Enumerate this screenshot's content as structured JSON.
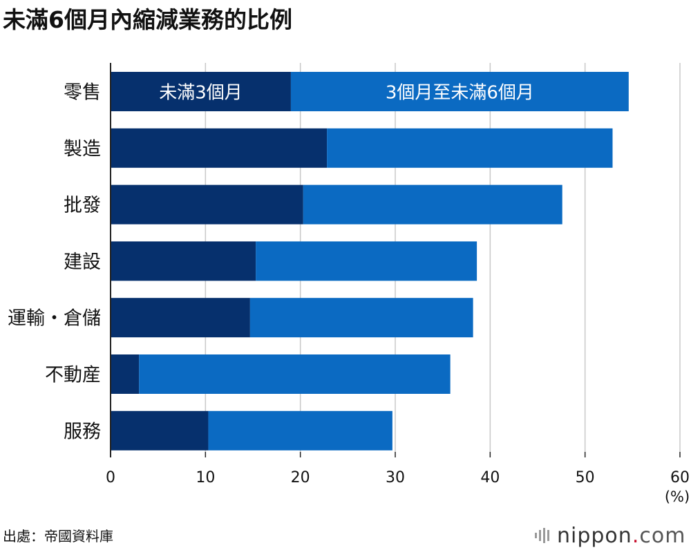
{
  "title": "未滿6個月內縮減業務的比例",
  "source": "出處：帝國資料庫",
  "brand": {
    "name": "nippon",
    "dot": ".",
    "suffix": "com"
  },
  "colors": {
    "dark": "#06306d",
    "light": "#0b6ac2",
    "grid": "#c8c8c8",
    "axis": "#222222"
  },
  "chart_data": {
    "type": "bar",
    "orientation": "horizontal",
    "stacked": true,
    "title": "未滿6個月內縮減業務的比例",
    "categories": [
      "零售",
      "製造",
      "批發",
      "建設",
      "運輸・倉儲",
      "不動産",
      "服務"
    ],
    "series": [
      {
        "name": "未滿3個月",
        "values": [
          19.0,
          22.8,
          20.3,
          15.3,
          14.7,
          3.0,
          10.3
        ]
      },
      {
        "name": "3個月至未滿6個月",
        "values": [
          35.6,
          30.1,
          27.3,
          23.3,
          23.5,
          32.8,
          19.4
        ]
      }
    ],
    "xlim": [
      0,
      60
    ],
    "xticks": [
      0,
      10,
      20,
      30,
      40,
      50,
      60
    ],
    "xunit": "(%)",
    "grid": true,
    "legend": "inside first bar"
  }
}
